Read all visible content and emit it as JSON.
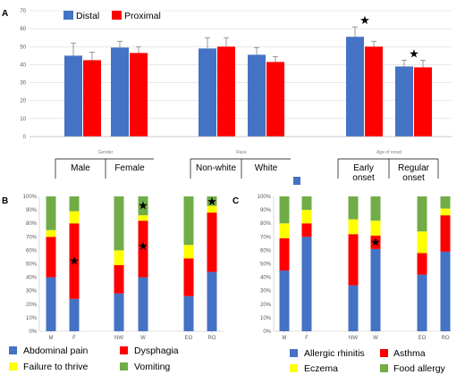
{
  "chart_data": [
    {
      "panel": "A",
      "type": "bar",
      "ylim": [
        0,
        70
      ],
      "yticks": [
        "0",
        "10",
        "20",
        "30",
        "40",
        "50",
        "60",
        "70"
      ],
      "grid": true,
      "legend": "top-left",
      "series": [
        {
          "name": "Distal",
          "color": "#4472C4",
          "values": [
            45,
            49.5,
            49,
            45.5,
            55.5,
            39
          ],
          "errors": [
            7,
            3.5,
            6,
            4,
            5.5,
            3.5
          ]
        },
        {
          "name": "Proximal",
          "color": "#FF0000",
          "values": [
            42.5,
            46.5,
            50,
            41.5,
            50,
            38.5
          ],
          "errors": [
            4.5,
            3.5,
            5,
            3,
            3,
            4
          ]
        }
      ],
      "categories": [
        "Male",
        "Female",
        "Non-white",
        "White",
        "Early onset",
        "Regular onset"
      ],
      "category_lines": [
        [
          "Male"
        ],
        [
          "Female"
        ],
        [
          "Non-white"
        ],
        [
          "White"
        ],
        [
          "Early",
          "onset"
        ],
        [
          "Regular",
          "onset"
        ]
      ],
      "groups": [
        "Gender",
        "Race",
        "Age of onset"
      ],
      "significant": [
        4,
        5
      ]
    },
    {
      "panel": "B",
      "type": "bar",
      "stacked": true,
      "percent": true,
      "yticks": [
        "0%",
        "10%",
        "20%",
        "30%",
        "40%",
        "50%",
        "60%",
        "70%",
        "80%",
        "90%",
        "100%"
      ],
      "categories": [
        "M",
        "F",
        "NW",
        "W",
        "EO",
        "RO"
      ],
      "series": [
        {
          "name": "Abdominal pain",
          "color": "#4472C4",
          "values": [
            40,
            24,
            28,
            40,
            26,
            44
          ]
        },
        {
          "name": "Dysphagia",
          "color": "#FF0000",
          "values": [
            30,
            56,
            21,
            42,
            28,
            44
          ]
        },
        {
          "name": "Failure to thrive",
          "color": "#FFFF00",
          "values": [
            5,
            9,
            11,
            4,
            10,
            5
          ]
        },
        {
          "name": "Vomiting",
          "color": "#70AD47",
          "values": [
            25,
            11,
            40,
            14,
            36,
            7
          ]
        }
      ],
      "stars": [
        [
          1,
          52
        ],
        [
          3,
          63
        ],
        [
          3,
          93
        ],
        [
          5,
          96
        ]
      ]
    },
    {
      "panel": "C",
      "type": "bar",
      "stacked": true,
      "percent": true,
      "yticks": [
        "0%",
        "10%",
        "20%",
        "30%",
        "40%",
        "50%",
        "60%",
        "70%",
        "80%",
        "90%",
        "100%"
      ],
      "categories": [
        "M",
        "F",
        "NW",
        "W",
        "EO",
        "RO"
      ],
      "series": [
        {
          "name": "Allergic rhinitis",
          "color": "#4472C4",
          "values": [
            45,
            70,
            34,
            61,
            42,
            59
          ]
        },
        {
          "name": "Asthma",
          "color": "#FF0000",
          "values": [
            24,
            10,
            38,
            10,
            16,
            27
          ]
        },
        {
          "name": "Eczema",
          "color": "#FFFF00",
          "values": [
            11,
            10,
            11,
            11,
            16,
            5
          ]
        },
        {
          "name": "Food allergy",
          "color": "#70AD47",
          "values": [
            20,
            10,
            17,
            18,
            26,
            9
          ]
        }
      ],
      "stars": [
        [
          3,
          66
        ]
      ]
    }
  ]
}
